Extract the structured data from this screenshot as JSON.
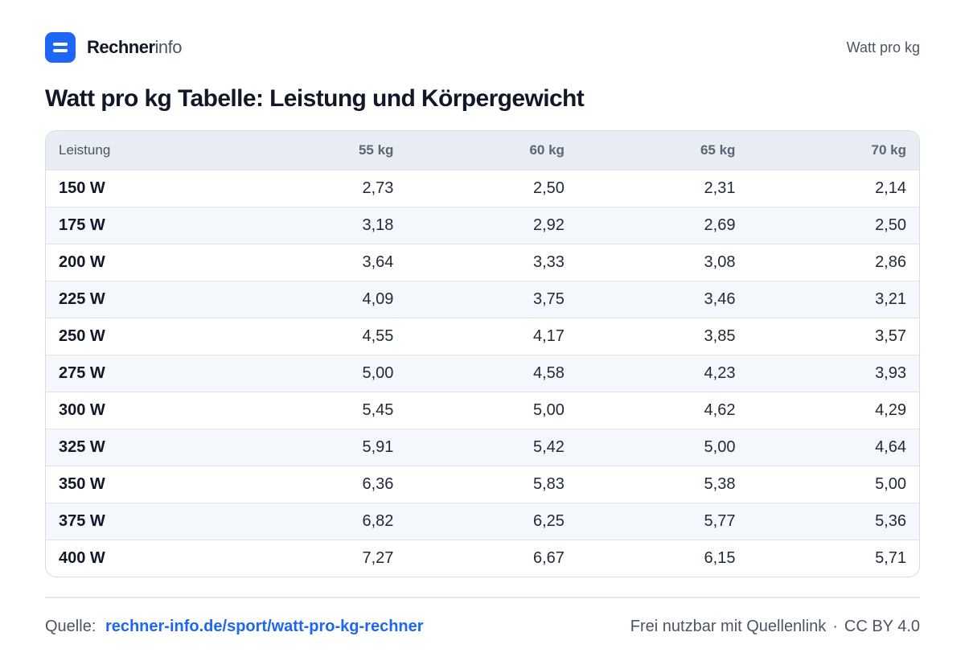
{
  "header": {
    "brand_bold": "Rechner",
    "brand_light": "info",
    "right_label": "Watt pro kg"
  },
  "page_title": "Watt pro kg Tabelle: Leistung und Körpergewicht",
  "table": {
    "columns": [
      "Leistung",
      "55 kg",
      "60 kg",
      "65 kg",
      "70 kg"
    ],
    "rows": [
      [
        "150 W",
        "2,73",
        "2,50",
        "2,31",
        "2,14"
      ],
      [
        "175 W",
        "3,18",
        "2,92",
        "2,69",
        "2,50"
      ],
      [
        "200 W",
        "3,64",
        "3,33",
        "3,08",
        "2,86"
      ],
      [
        "225 W",
        "4,09",
        "3,75",
        "3,46",
        "3,21"
      ],
      [
        "250 W",
        "4,55",
        "4,17",
        "3,85",
        "3,57"
      ],
      [
        "275 W",
        "5,00",
        "4,58",
        "4,23",
        "3,93"
      ],
      [
        "300 W",
        "5,45",
        "5,00",
        "4,62",
        "4,29"
      ],
      [
        "325 W",
        "5,91",
        "5,42",
        "5,00",
        "4,64"
      ],
      [
        "350 W",
        "6,36",
        "5,83",
        "5,38",
        "5,00"
      ],
      [
        "375 W",
        "6,82",
        "6,25",
        "5,77",
        "5,36"
      ],
      [
        "400 W",
        "7,27",
        "6,67",
        "6,15",
        "5,71"
      ]
    ]
  },
  "footer": {
    "source_label": "Quelle:",
    "source_link": "rechner-info.de/sport/watt-pro-kg-rechner",
    "license_text": "Frei nutzbar mit Quellenlink",
    "separator": "·",
    "license": "CC BY 4.0"
  },
  "colors": {
    "accent": "#1e66f5",
    "header_row": "#e8edf4",
    "zebra_row": "#f4f7fb"
  },
  "icons": {
    "logo": "equals-logo-icon"
  }
}
